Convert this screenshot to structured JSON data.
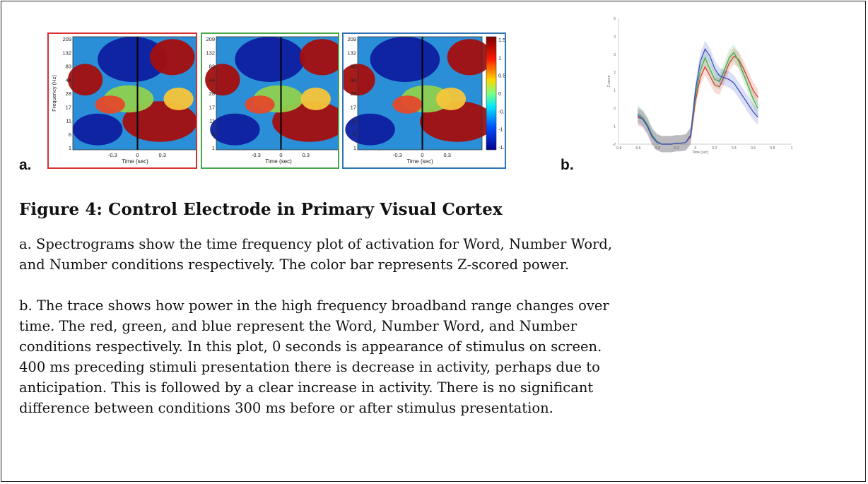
{
  "panel_labels": {
    "a": "a.",
    "b": "b."
  },
  "spectrograms": {
    "y_ticks": [
      "209",
      "132",
      "83",
      "44",
      "28",
      "17",
      "11",
      "6",
      "1"
    ],
    "x_ticks": [
      "-0.3",
      "0",
      "0.3"
    ],
    "xlabel": "Time (sec)",
    "ylabel": "Frequency (Hz)",
    "colorbar_ticks": [
      "1.5",
      "1",
      "0.5",
      "0",
      "-0.5",
      "-1",
      "-1.5"
    ],
    "frame_colors": {
      "word": "#d93030",
      "number_word": "#4aa64a",
      "number": "#2e74b5"
    }
  },
  "chart_data": {
    "type": "line",
    "xlabel": "Time (sec)",
    "ylabel": "Z-score",
    "xlim": [
      -0.8,
      1.0
    ],
    "ylim": [
      -2,
      5
    ],
    "x_ticks": [
      "-0.8",
      "-0.6",
      "-0.4",
      "-0.2",
      "0",
      "0.2",
      "0.4",
      "0.6",
      "0.8",
      "1"
    ],
    "y_ticks": [
      "5",
      "4",
      "3",
      "2",
      "1",
      "0",
      "-1",
      "-2"
    ],
    "series": [
      {
        "color": "#e0382f",
        "x": [
          -0.6,
          -0.55,
          -0.5,
          -0.45,
          -0.4,
          -0.35,
          -0.3,
          -0.25,
          -0.2,
          -0.15,
          -0.1,
          -0.05,
          0,
          0.05,
          0.1,
          0.15,
          0.2,
          0.25,
          0.3,
          0.35,
          0.4,
          0.45,
          0.5,
          0.55,
          0.6,
          0.65
        ],
        "y": [
          -0.5,
          -0.6,
          -1.0,
          -1.6,
          -1.9,
          -2.0,
          -2.0,
          -2.0,
          -1.95,
          -1.95,
          -1.9,
          -1.6,
          0.4,
          1.7,
          2.3,
          1.8,
          1.3,
          1.2,
          1.8,
          2.5,
          2.9,
          2.7,
          2.2,
          1.6,
          1.0,
          0.6
        ]
      },
      {
        "color": "#3fae4a",
        "x": [
          -0.6,
          -0.55,
          -0.5,
          -0.45,
          -0.4,
          -0.35,
          -0.3,
          -0.25,
          -0.2,
          -0.15,
          -0.1,
          -0.05,
          0,
          0.05,
          0.1,
          0.15,
          0.2,
          0.25,
          0.3,
          0.35,
          0.4,
          0.45,
          0.5,
          0.55,
          0.6,
          0.65
        ],
        "y": [
          -0.3,
          -0.5,
          -0.9,
          -1.5,
          -1.85,
          -2.0,
          -2.0,
          -2.0,
          -1.95,
          -1.95,
          -1.9,
          -1.5,
          0.7,
          2.1,
          2.8,
          2.2,
          1.6,
          1.5,
          2.1,
          2.8,
          3.1,
          2.6,
          1.9,
          1.2,
          0.5,
          0.0
        ]
      },
      {
        "color": "#3a4fc4",
        "x": [
          -0.6,
          -0.55,
          -0.5,
          -0.45,
          -0.4,
          -0.35,
          -0.3,
          -0.25,
          -0.2,
          -0.15,
          -0.1,
          -0.05,
          0,
          0.05,
          0.1,
          0.15,
          0.2,
          0.25,
          0.3,
          0.35,
          0.4,
          0.45,
          0.5,
          0.55,
          0.6,
          0.65
        ],
        "y": [
          -0.4,
          -0.6,
          -1.0,
          -1.6,
          -1.9,
          -2.0,
          -2.0,
          -2.0,
          -1.95,
          -1.95,
          -1.9,
          -1.5,
          1.0,
          2.6,
          3.3,
          2.9,
          2.2,
          1.8,
          1.7,
          1.6,
          1.4,
          1.0,
          0.6,
          0.2,
          -0.2,
          -0.5
        ]
      }
    ]
  },
  "figure": {
    "title": "Figure 4: Control Electrode in Primary Visual Cortex",
    "para_a": [
      "a. Spectrograms show the time frequency plot of activation for Word, Number Word,",
      "and Number conditions respectively. The color bar represents Z-scored power."
    ],
    "para_b": [
      "b. The trace shows how power in the high frequency broadband range changes over",
      "time. The red, green, and blue represent the Word, Number Word, and Number",
      "conditions respectively. In this plot, 0 seconds is appearance of stimulus on screen.",
      "400 ms preceding stimuli presentation there is decrease in activity, perhaps due to",
      "anticipation. This is followed by a clear increase in activity. There is no significant",
      "difference between conditions 300 ms before or after stimulus presentation."
    ]
  }
}
